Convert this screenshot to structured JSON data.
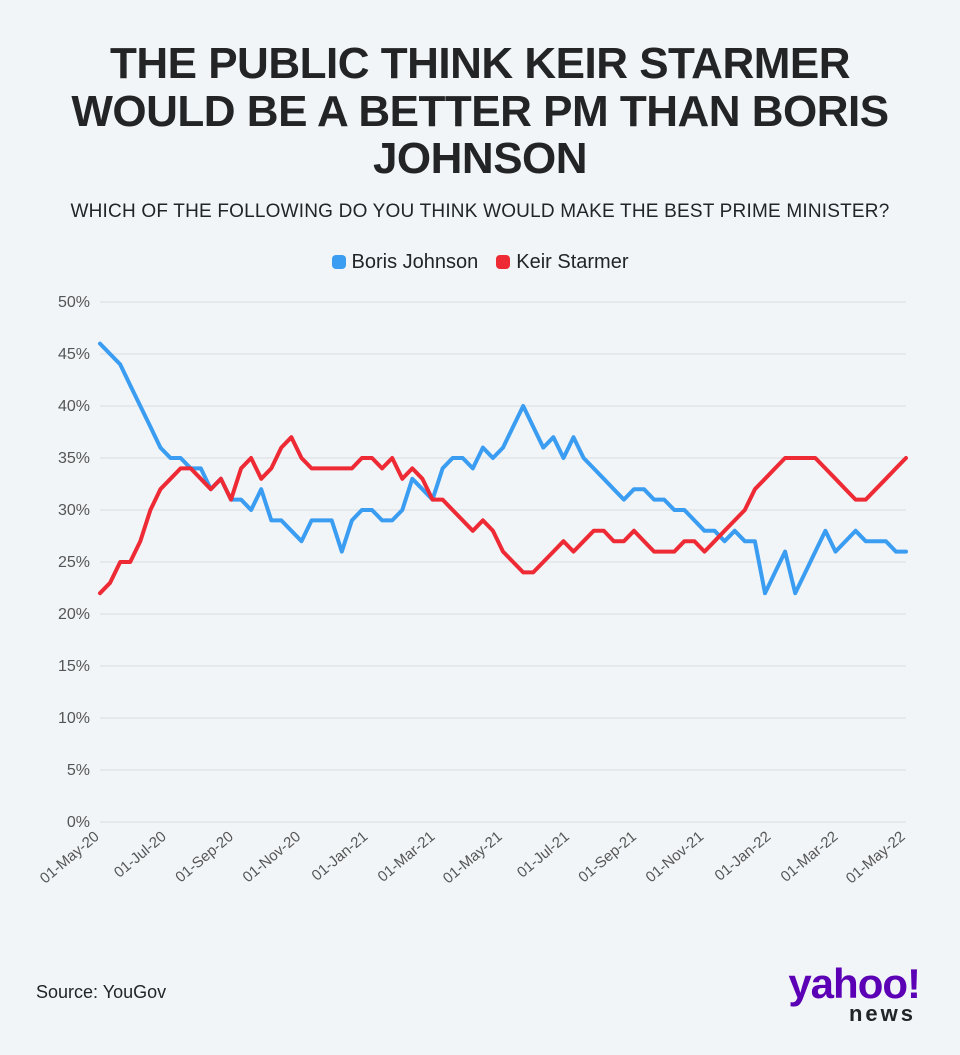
{
  "title": "THE PUBLIC THINK KEIR STARMER WOULD BE A BETTER PM THAN BORIS JOHNSON",
  "subtitle": "WHICH OF THE FOLLOWING DO YOU THINK WOULD MAKE THE BEST PRIME MINISTER?",
  "source": "Source: YouGov",
  "logo": {
    "main": "yahoo!",
    "sub": "news",
    "main_color": "#5b00b5",
    "sub_color": "#222426"
  },
  "chart": {
    "type": "line",
    "background_color": "#f1f5f8",
    "grid_color": "#d9dde0",
    "text_color": "#555555",
    "y": {
      "min": 0,
      "max": 50,
      "step": 5,
      "suffix": "%",
      "label_fontsize": 16
    },
    "x": {
      "min": 0,
      "max": 24,
      "ticks": [
        {
          "pos": 0,
          "label": "01-May-20"
        },
        {
          "pos": 2,
          "label": "01-Jul-20"
        },
        {
          "pos": 4,
          "label": "01-Sep-20"
        },
        {
          "pos": 6,
          "label": "01-Nov-20"
        },
        {
          "pos": 8,
          "label": "01-Jan-21"
        },
        {
          "pos": 10,
          "label": "01-Mar-21"
        },
        {
          "pos": 12,
          "label": "01-May-21"
        },
        {
          "pos": 14,
          "label": "01-Jul-21"
        },
        {
          "pos": 16,
          "label": "01-Sep-21"
        },
        {
          "pos": 18,
          "label": "01-Nov-21"
        },
        {
          "pos": 20,
          "label": "01-Jan-22"
        },
        {
          "pos": 22,
          "label": "01-Mar-22"
        },
        {
          "pos": 24,
          "label": "01-May-22"
        }
      ],
      "label_fontsize": 15,
      "label_rotation": -40
    },
    "line_width": 4,
    "series": [
      {
        "name": "Boris Johnson",
        "color": "#3a9df2",
        "points": [
          [
            0.0,
            46
          ],
          [
            0.3,
            45
          ],
          [
            0.6,
            44
          ],
          [
            0.9,
            42
          ],
          [
            1.2,
            40
          ],
          [
            1.5,
            38
          ],
          [
            1.8,
            36
          ],
          [
            2.1,
            35
          ],
          [
            2.4,
            35
          ],
          [
            2.7,
            34
          ],
          [
            3.0,
            34
          ],
          [
            3.3,
            32
          ],
          [
            3.6,
            33
          ],
          [
            3.9,
            31
          ],
          [
            4.2,
            31
          ],
          [
            4.5,
            30
          ],
          [
            4.8,
            32
          ],
          [
            5.1,
            29
          ],
          [
            5.4,
            29
          ],
          [
            5.7,
            28
          ],
          [
            6.0,
            27
          ],
          [
            6.3,
            29
          ],
          [
            6.6,
            29
          ],
          [
            6.9,
            29
          ],
          [
            7.2,
            26
          ],
          [
            7.5,
            29
          ],
          [
            7.8,
            30
          ],
          [
            8.1,
            30
          ],
          [
            8.4,
            29
          ],
          [
            8.7,
            29
          ],
          [
            9.0,
            30
          ],
          [
            9.3,
            33
          ],
          [
            9.6,
            32
          ],
          [
            9.9,
            31
          ],
          [
            10.2,
            34
          ],
          [
            10.5,
            35
          ],
          [
            10.8,
            35
          ],
          [
            11.1,
            34
          ],
          [
            11.4,
            36
          ],
          [
            11.7,
            35
          ],
          [
            12.0,
            36
          ],
          [
            12.3,
            38
          ],
          [
            12.6,
            40
          ],
          [
            12.9,
            38
          ],
          [
            13.2,
            36
          ],
          [
            13.5,
            37
          ],
          [
            13.8,
            35
          ],
          [
            14.1,
            37
          ],
          [
            14.4,
            35
          ],
          [
            14.7,
            34
          ],
          [
            15.0,
            33
          ],
          [
            15.3,
            32
          ],
          [
            15.6,
            31
          ],
          [
            15.9,
            32
          ],
          [
            16.2,
            32
          ],
          [
            16.5,
            31
          ],
          [
            16.8,
            31
          ],
          [
            17.1,
            30
          ],
          [
            17.4,
            30
          ],
          [
            17.7,
            29
          ],
          [
            18.0,
            28
          ],
          [
            18.3,
            28
          ],
          [
            18.6,
            27
          ],
          [
            18.9,
            28
          ],
          [
            19.2,
            27
          ],
          [
            19.5,
            27
          ],
          [
            19.8,
            22
          ],
          [
            20.1,
            24
          ],
          [
            20.4,
            26
          ],
          [
            20.7,
            22
          ],
          [
            21.0,
            24
          ],
          [
            21.3,
            26
          ],
          [
            21.6,
            28
          ],
          [
            21.9,
            26
          ],
          [
            22.2,
            27
          ],
          [
            22.5,
            28
          ],
          [
            22.8,
            27
          ],
          [
            23.1,
            27
          ],
          [
            23.4,
            27
          ],
          [
            23.7,
            26
          ],
          [
            24.0,
            26
          ]
        ]
      },
      {
        "name": "Keir Starmer",
        "color": "#ee2a35",
        "points": [
          [
            0.0,
            22
          ],
          [
            0.3,
            23
          ],
          [
            0.6,
            25
          ],
          [
            0.9,
            25
          ],
          [
            1.2,
            27
          ],
          [
            1.5,
            30
          ],
          [
            1.8,
            32
          ],
          [
            2.1,
            33
          ],
          [
            2.4,
            34
          ],
          [
            2.7,
            34
          ],
          [
            3.0,
            33
          ],
          [
            3.3,
            32
          ],
          [
            3.6,
            33
          ],
          [
            3.9,
            31
          ],
          [
            4.2,
            34
          ],
          [
            4.5,
            35
          ],
          [
            4.8,
            33
          ],
          [
            5.1,
            34
          ],
          [
            5.4,
            36
          ],
          [
            5.7,
            37
          ],
          [
            6.0,
            35
          ],
          [
            6.3,
            34
          ],
          [
            6.6,
            34
          ],
          [
            6.9,
            34
          ],
          [
            7.2,
            34
          ],
          [
            7.5,
            34
          ],
          [
            7.8,
            35
          ],
          [
            8.1,
            35
          ],
          [
            8.4,
            34
          ],
          [
            8.7,
            35
          ],
          [
            9.0,
            33
          ],
          [
            9.3,
            34
          ],
          [
            9.6,
            33
          ],
          [
            9.9,
            31
          ],
          [
            10.2,
            31
          ],
          [
            10.5,
            30
          ],
          [
            10.8,
            29
          ],
          [
            11.1,
            28
          ],
          [
            11.4,
            29
          ],
          [
            11.7,
            28
          ],
          [
            12.0,
            26
          ],
          [
            12.3,
            25
          ],
          [
            12.6,
            24
          ],
          [
            12.9,
            24
          ],
          [
            13.2,
            25
          ],
          [
            13.5,
            26
          ],
          [
            13.8,
            27
          ],
          [
            14.1,
            26
          ],
          [
            14.4,
            27
          ],
          [
            14.7,
            28
          ],
          [
            15.0,
            28
          ],
          [
            15.3,
            27
          ],
          [
            15.6,
            27
          ],
          [
            15.9,
            28
          ],
          [
            16.2,
            27
          ],
          [
            16.5,
            26
          ],
          [
            16.8,
            26
          ],
          [
            17.1,
            26
          ],
          [
            17.4,
            27
          ],
          [
            17.7,
            27
          ],
          [
            18.0,
            26
          ],
          [
            18.3,
            27
          ],
          [
            18.6,
            28
          ],
          [
            18.9,
            29
          ],
          [
            19.2,
            30
          ],
          [
            19.5,
            32
          ],
          [
            19.8,
            33
          ],
          [
            20.1,
            34
          ],
          [
            20.4,
            35
          ],
          [
            20.7,
            35
          ],
          [
            21.0,
            35
          ],
          [
            21.3,
            35
          ],
          [
            21.6,
            34
          ],
          [
            21.9,
            33
          ],
          [
            22.2,
            32
          ],
          [
            22.5,
            31
          ],
          [
            22.8,
            31
          ],
          [
            23.1,
            32
          ],
          [
            23.4,
            33
          ],
          [
            23.7,
            34
          ],
          [
            24.0,
            35
          ]
        ]
      }
    ]
  }
}
